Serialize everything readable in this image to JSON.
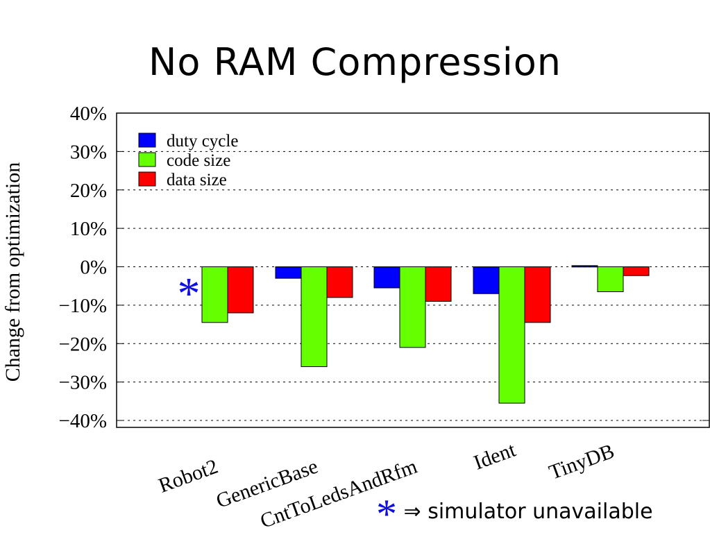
{
  "slide": {
    "title": "No RAM Compression",
    "footnote": {
      "marker": "*",
      "text": "⇒ simulator unavailable"
    }
  },
  "chart_data": {
    "type": "bar",
    "title": "",
    "xlabel": "",
    "ylabel": "Change from optimization",
    "ylim": [
      -40,
      40
    ],
    "yticks": [
      40,
      30,
      20,
      10,
      0,
      -10,
      -20,
      -30,
      -40
    ],
    "ytick_labels": [
      "40%",
      "30%",
      "20%",
      "10%",
      "0%",
      "−10%",
      "−20%",
      "−30%",
      "−40%"
    ],
    "grid": "horizontal dashed",
    "legend_position": "top-left",
    "categories": [
      "Robot2",
      "GenericBase",
      "CntToLedsAndRfm",
      "Ident",
      "TinyDB"
    ],
    "series": [
      {
        "name": "duty cycle",
        "color": "#0000ff",
        "values": [
          null,
          -3,
          -5.5,
          -7,
          0.3
        ]
      },
      {
        "name": "code size",
        "color": "#66ff00",
        "values": [
          -14.5,
          -26,
          -21,
          -35.5,
          -6.5
        ]
      },
      {
        "name": "data size",
        "color": "#ff0000",
        "values": [
          -12,
          -8,
          -9,
          -14.5,
          -2.3
        ]
      }
    ],
    "annotations": [
      {
        "category": "Robot2",
        "series": "duty cycle",
        "text": "*"
      }
    ]
  }
}
